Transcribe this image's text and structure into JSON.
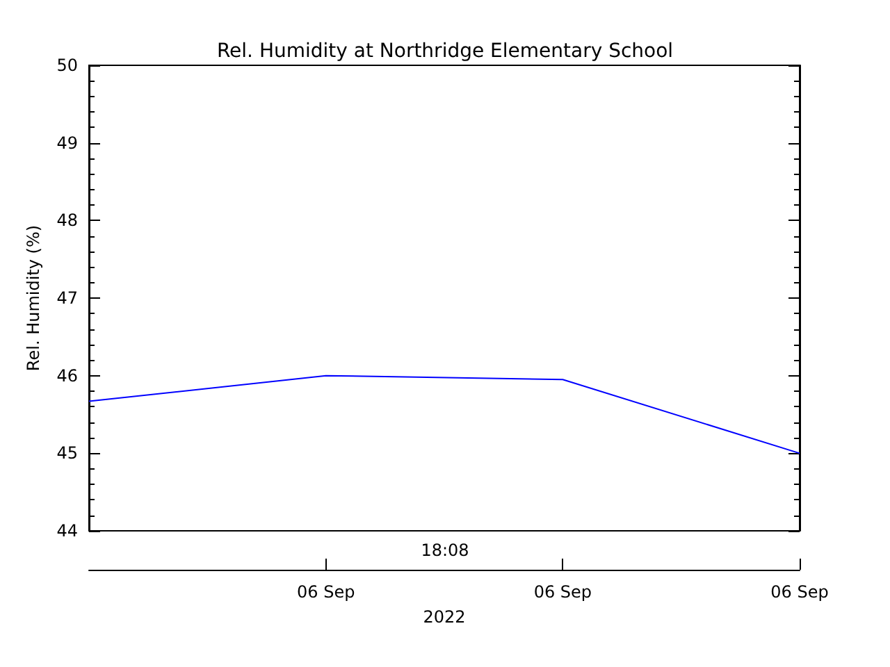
{
  "chart_data": {
    "type": "line",
    "title": "Rel. Humidity at Northridge Elementary School",
    "ylabel": "Rel. Humidity (%)",
    "xlabel": "2022",
    "annotations": [
      "18:08"
    ],
    "categories": [
      null,
      "06 Sep",
      "06 Sep",
      "06 Sep"
    ],
    "series": [
      {
        "color": "#0000ff",
        "values": [
          45.67,
          46.0,
          45.95,
          45.0
        ]
      }
    ],
    "ylim": [
      44,
      50
    ],
    "yticks": [
      44,
      45,
      46,
      47,
      48,
      49,
      50
    ],
    "grid": false,
    "marker": "none",
    "line_style": "solid"
  }
}
